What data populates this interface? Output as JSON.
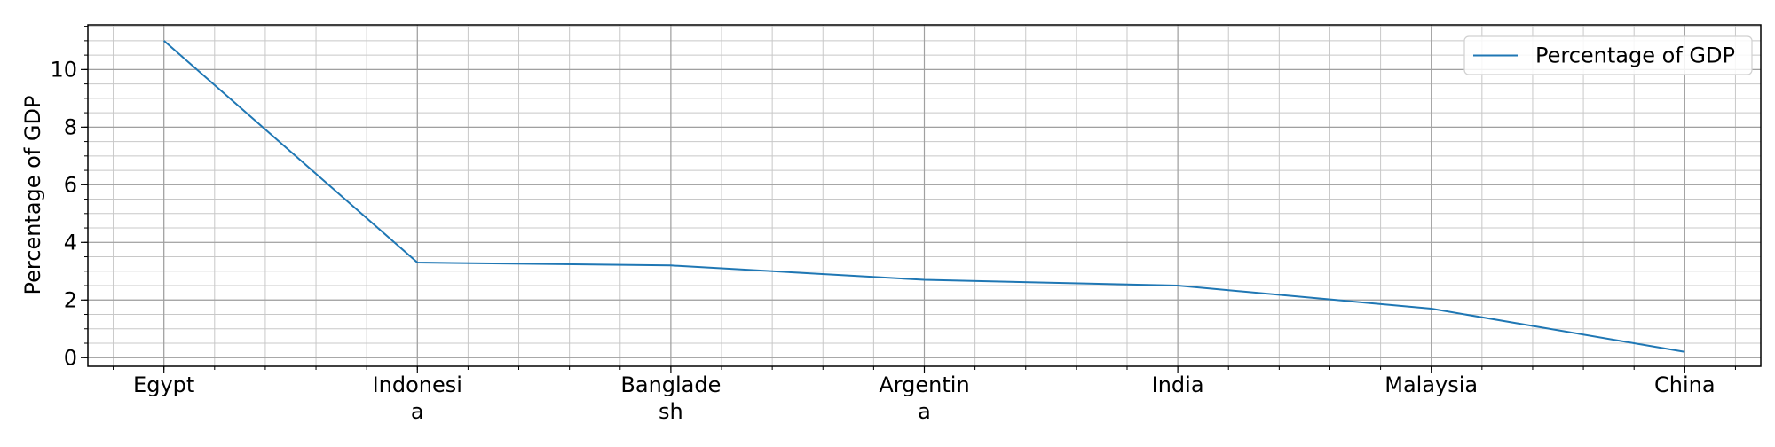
{
  "chart_data": {
    "type": "line",
    "categories": [
      [
        "Egypt"
      ],
      [
        "Indonesi",
        "a"
      ],
      [
        "Banglade",
        "sh"
      ],
      [
        "Argentin",
        "a"
      ],
      [
        "India"
      ],
      [
        "Malaysia"
      ],
      [
        "China"
      ]
    ],
    "series": [
      {
        "name": "Percentage of GDP",
        "values": [
          11.0,
          3.3,
          3.2,
          2.7,
          2.5,
          1.7,
          0.2
        ],
        "color": "#1f77b4"
      }
    ],
    "title": "",
    "xlabel": "",
    "ylabel": "Percentage of GDP",
    "ylim": [
      -0.3,
      11.55
    ],
    "yticks": [
      0,
      2,
      4,
      6,
      8,
      10
    ],
    "y_minor_step": 0.5,
    "x_minor_per_major": 5,
    "grid": true,
    "legend_position": "top-right"
  }
}
